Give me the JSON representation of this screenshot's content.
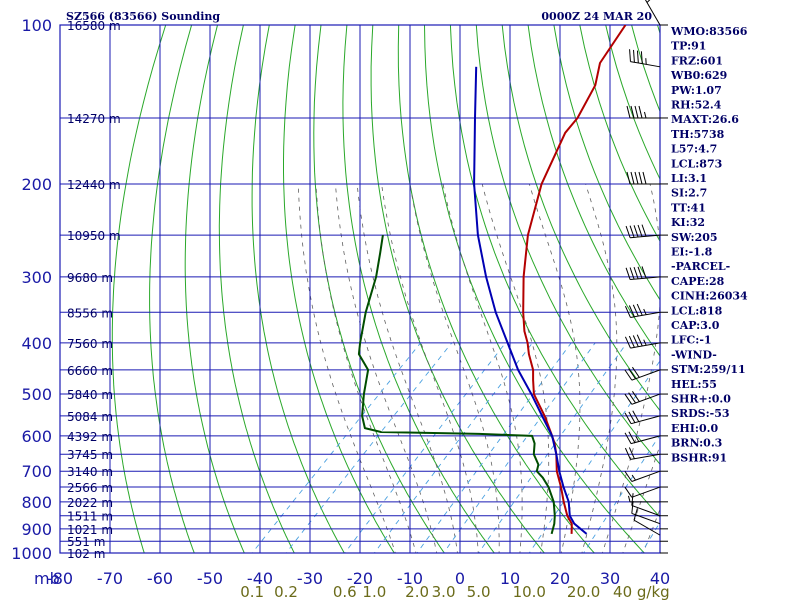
{
  "header": {
    "station": "SZ566 (83566) Sounding",
    "valid_time": "0000Z 24 MAR 20"
  },
  "indices": [
    "WMO:83566",
    "TP:91",
    "FRZ:601",
    "WB0:629",
    "PW:1.07",
    "RH:52.4",
    "MAXT:26.6",
    "TH:5738",
    "L57:4.7",
    "LCL:873",
    "LI:3.1",
    "SI:2.7",
    "TT:41",
    "KI:32",
    "SW:205",
    "EI:-1.8",
    "-PARCEL-",
    "CAPE:28",
    "CINH:26034",
    "LCL:818",
    "CAP:3.0",
    "LFC:-1",
    "-WIND-",
    "STM:259/11",
    "HEL:55",
    "SHR+:0.0",
    "SRDS:-53",
    "EHI:0.0",
    "BRN:0.3",
    "BSHR:91"
  ],
  "colors": {
    "grid": "#1a1ab3",
    "dry_adiabat": "#2aa82a",
    "moist_adiabat": "#606060",
    "mixing_ratio": "#4aa0e0",
    "temperature": "#b30000",
    "dewpoint": "#004d00",
    "parcel": "#0000b3",
    "wind": "#000000"
  },
  "chart_data": {
    "type": "line",
    "title": "SZ566 (83566) Sounding",
    "subtitle": "0000Z 24 MAR 20",
    "pressure_axis": {
      "unit_label": "mb",
      "ticks": [
        100,
        200,
        300,
        400,
        500,
        600,
        700,
        800,
        900,
        1000
      ],
      "scale": "log",
      "range": [
        1000,
        100
      ]
    },
    "temperature_axis": {
      "ticks": [
        -80,
        -70,
        -60,
        -50,
        -40,
        -30,
        -20,
        -10,
        0,
        10,
        20,
        30,
        40
      ],
      "range": [
        -80,
        40
      ],
      "skew": true
    },
    "mixing_ratio_labels": [
      "0.1",
      "0.2",
      "0.6",
      "1.0",
      "2.0",
      "3.0",
      "5.0",
      "10.0",
      "20.0",
      "40 g/kg"
    ],
    "mixing_ratio_values": [
      0.1,
      0.2,
      0.6,
      1.0,
      2.0,
      3.0,
      5.0,
      10.0,
      20.0,
      40.0
    ],
    "height_labels": [
      {
        "p": 100,
        "label": "16580 m"
      },
      {
        "p": 150,
        "label": "14270 m"
      },
      {
        "p": 200,
        "label": "12440 m"
      },
      {
        "p": 250,
        "label": "10950 m"
      },
      {
        "p": 300,
        "label": "9680 m"
      },
      {
        "p": 350,
        "label": "8556 m"
      },
      {
        "p": 400,
        "label": "7560 m"
      },
      {
        "p": 450,
        "label": "6660 m"
      },
      {
        "p": 500,
        "label": "5840 m"
      },
      {
        "p": 550,
        "label": "5084 m"
      },
      {
        "p": 600,
        "label": "4392 m"
      },
      {
        "p": 650,
        "label": "3745 m"
      },
      {
        "p": 700,
        "label": "3140 m"
      },
      {
        "p": 750,
        "label": "2566 m"
      },
      {
        "p": 800,
        "label": "2022 m"
      },
      {
        "p": 850,
        "label": "1511 m"
      },
      {
        "p": 900,
        "label": "1021 m"
      },
      {
        "p": 950,
        "label": "551 m"
      },
      {
        "p": 1000,
        "label": "102 m"
      }
    ],
    "series": [
      {
        "key": "temperature",
        "points": [
          {
            "p": 920,
            "t": 18.5
          },
          {
            "p": 880,
            "t": 16.5
          },
          {
            "p": 850,
            "t": 14.0
          },
          {
            "p": 800,
            "t": 10.5
          },
          {
            "p": 750,
            "t": 7.0
          },
          {
            "p": 700,
            "t": 3.0
          },
          {
            "p": 650,
            "t": -0.5
          },
          {
            "p": 620,
            "t": -3.0
          },
          {
            "p": 600,
            "t": -5.0
          },
          {
            "p": 550,
            "t": -10.5
          },
          {
            "p": 500,
            "t": -17.0
          },
          {
            "p": 470,
            "t": -20.0
          },
          {
            "p": 450,
            "t": -22.0
          },
          {
            "p": 420,
            "t": -26.0
          },
          {
            "p": 400,
            "t": -28.5
          },
          {
            "p": 380,
            "t": -31.5
          },
          {
            "p": 350,
            "t": -35.5
          },
          {
            "p": 300,
            "t": -42.5
          },
          {
            "p": 250,
            "t": -50.0
          },
          {
            "p": 200,
            "t": -57.5
          },
          {
            "p": 160,
            "t": -63.0
          },
          {
            "p": 150,
            "t": -63.5
          },
          {
            "p": 130,
            "t": -66.5
          },
          {
            "p": 118,
            "t": -70.0
          },
          {
            "p": 100,
            "t": -72.5
          }
        ]
      },
      {
        "key": "dewpoint",
        "points": [
          {
            "p": 920,
            "t": 14.5
          },
          {
            "p": 880,
            "t": 13.0
          },
          {
            "p": 850,
            "t": 11.5
          },
          {
            "p": 800,
            "t": 8.5
          },
          {
            "p": 750,
            "t": 4.5
          },
          {
            "p": 720,
            "t": 1.5
          },
          {
            "p": 700,
            "t": -1.0
          },
          {
            "p": 680,
            "t": -2.0
          },
          {
            "p": 650,
            "t": -5.0
          },
          {
            "p": 620,
            "t": -7.0
          },
          {
            "p": 600,
            "t": -9.0
          },
          {
            "p": 595,
            "t": -20.0
          },
          {
            "p": 590,
            "t": -40.0
          },
          {
            "p": 580,
            "t": -44.0
          },
          {
            "p": 550,
            "t": -47.0
          },
          {
            "p": 500,
            "t": -51.0
          },
          {
            "p": 450,
            "t": -55.0
          },
          {
            "p": 420,
            "t": -60.0
          },
          {
            "p": 400,
            "t": -62.0
          },
          {
            "p": 350,
            "t": -67.0
          },
          {
            "p": 300,
            "t": -72.0
          },
          {
            "p": 270,
            "t": -76.0
          },
          {
            "p": 250,
            "t": -79.0
          }
        ]
      },
      {
        "key": "parcel",
        "points": [
          {
            "p": 920,
            "t": 21.5
          },
          {
            "p": 880,
            "t": 17.0
          },
          {
            "p": 850,
            "t": 14.5
          },
          {
            "p": 800,
            "t": 11.5
          },
          {
            "p": 750,
            "t": 7.5
          },
          {
            "p": 700,
            "t": 3.5
          },
          {
            "p": 650,
            "t": -0.5
          },
          {
            "p": 600,
            "t": -5.0
          },
          {
            "p": 550,
            "t": -11.0
          },
          {
            "p": 500,
            "t": -17.5
          },
          {
            "p": 450,
            "t": -25.0
          },
          {
            "p": 400,
            "t": -32.5
          },
          {
            "p": 350,
            "t": -41.0
          },
          {
            "p": 300,
            "t": -50.0
          },
          {
            "p": 250,
            "t": -60.0
          },
          {
            "p": 200,
            "t": -71.0
          },
          {
            "p": 150,
            "t": -84.0
          },
          {
            "p": 120,
            "t": -94.0
          }
        ]
      }
    ],
    "wind_barbs": [
      {
        "p": 925,
        "dir": 300,
        "spd": 10
      },
      {
        "p": 880,
        "dir": 290,
        "spd": 10
      },
      {
        "p": 850,
        "dir": 290,
        "spd": 10
      },
      {
        "p": 800,
        "dir": 270,
        "spd": 5
      },
      {
        "p": 750,
        "dir": 250,
        "spd": 10
      },
      {
        "p": 700,
        "dir": 250,
        "spd": 15
      },
      {
        "p": 650,
        "dir": 260,
        "spd": 20
      },
      {
        "p": 600,
        "dir": 255,
        "spd": 25
      },
      {
        "p": 550,
        "dir": 255,
        "spd": 30
      },
      {
        "p": 500,
        "dir": 250,
        "spd": 30
      },
      {
        "p": 450,
        "dir": 250,
        "spd": 30
      },
      {
        "p": 400,
        "dir": 260,
        "spd": 45
      },
      {
        "p": 350,
        "dir": 260,
        "spd": 45
      },
      {
        "p": 300,
        "dir": 265,
        "spd": 50
      },
      {
        "p": 250,
        "dir": 265,
        "spd": 50
      },
      {
        "p": 200,
        "dir": 270,
        "spd": 50
      },
      {
        "p": 150,
        "dir": 270,
        "spd": 45
      },
      {
        "p": 120,
        "dir": 280,
        "spd": 45
      },
      {
        "p": 100,
        "dir": 330,
        "spd": 20
      }
    ]
  }
}
